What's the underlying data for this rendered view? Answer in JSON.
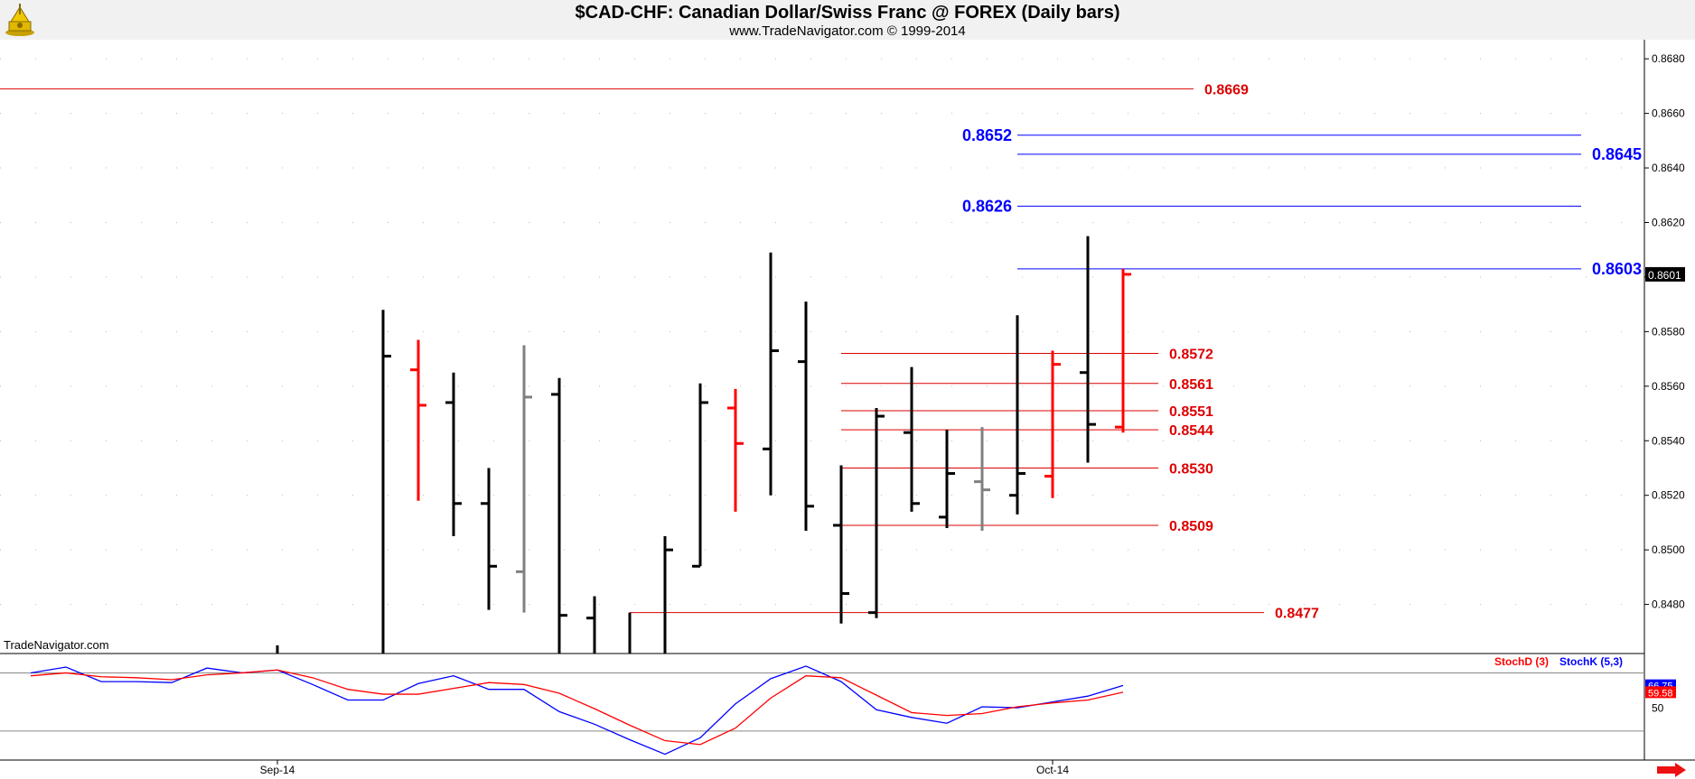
{
  "header": {
    "title": "$CAD-CHF:  Canadian Dollar/Swiss Franc @ FOREX  (Daily bars)",
    "subtitle": "www.TradeNavigator.com © 1999-2014"
  },
  "watermark": "TradeNavigator.com",
  "colors": {
    "up_bar": "#000000",
    "down_bar": "#ff0000",
    "neutral_bar": "#808080",
    "resistance": "#0000ff",
    "support": "#dd0000",
    "stoch_d": "#ff0000",
    "stoch_k": "#0000ff",
    "last_price_bg": "#000000"
  },
  "chart_data": [
    {
      "type": "ohlc",
      "title": "$CAD-CHF:  Canadian Dollar/Swiss Franc @ FOREX  (Daily bars)",
      "ylim": [
        0.8462,
        0.8687
      ],
      "y_ticks": [
        "0.8480",
        "0.8500",
        "0.8520",
        "0.8540",
        "0.8560",
        "0.8580",
        "0.8600",
        "0.8620",
        "0.8640",
        "0.8660",
        "0.8680"
      ],
      "x_labels": [
        {
          "label": "Sep-14",
          "bar": 7
        },
        {
          "label": "Oct-14",
          "bar": 29
        }
      ],
      "last_price": "0.8601",
      "bars": [
        {
          "i": 7,
          "o": null,
          "h": 0.8465,
          "l": 0.8462,
          "c": null,
          "color": "up"
        },
        {
          "i": 10,
          "o": null,
          "h": 0.8588,
          "l": 0.8462,
          "c": 0.8571,
          "color": "up"
        },
        {
          "i": 11,
          "o": 0.8566,
          "h": 0.8577,
          "l": 0.8518,
          "c": 0.8553,
          "color": "down"
        },
        {
          "i": 12,
          "o": 0.8554,
          "h": 0.8565,
          "l": 0.8505,
          "c": 0.8517,
          "color": "up"
        },
        {
          "i": 13,
          "o": 0.8517,
          "h": 0.853,
          "l": 0.8478,
          "c": 0.8494,
          "color": "up"
        },
        {
          "i": 14,
          "o": 0.8492,
          "h": 0.8575,
          "l": 0.8477,
          "c": 0.8556,
          "color": "neutral"
        },
        {
          "i": 15,
          "o": 0.8557,
          "h": 0.8563,
          "l": 0.8462,
          "c": 0.8476,
          "color": "up"
        },
        {
          "i": 16,
          "o": 0.8475,
          "h": 0.8483,
          "l": 0.8462,
          "c": null,
          "color": "up"
        },
        {
          "i": 17,
          "o": null,
          "h": 0.8477,
          "l": 0.8462,
          "c": null,
          "color": "up"
        },
        {
          "i": 18,
          "o": null,
          "h": 0.8505,
          "l": 0.8462,
          "c": 0.85,
          "color": "up"
        },
        {
          "i": 19,
          "o": 0.8494,
          "h": 0.8561,
          "l": 0.8494,
          "c": 0.8554,
          "color": "up"
        },
        {
          "i": 20,
          "o": 0.8552,
          "h": 0.8559,
          "l": 0.8514,
          "c": 0.8539,
          "color": "down"
        },
        {
          "i": 21,
          "o": 0.8537,
          "h": 0.8609,
          "l": 0.852,
          "c": 0.8573,
          "color": "up"
        },
        {
          "i": 22,
          "o": 0.8569,
          "h": 0.8591,
          "l": 0.8507,
          "c": 0.8516,
          "color": "up"
        },
        {
          "i": 23,
          "o": 0.8509,
          "h": 0.8531,
          "l": 0.8473,
          "c": 0.8484,
          "color": "up"
        },
        {
          "i": 24,
          "o": 0.8477,
          "h": 0.8552,
          "l": 0.8475,
          "c": 0.8549,
          "color": "up"
        },
        {
          "i": 25,
          "o": 0.8543,
          "h": 0.8567,
          "l": 0.8514,
          "c": 0.8517,
          "color": "up"
        },
        {
          "i": 26,
          "o": 0.8512,
          "h": 0.8544,
          "l": 0.8508,
          "c": 0.8528,
          "color": "up"
        },
        {
          "i": 27,
          "o": 0.8525,
          "h": 0.8545,
          "l": 0.8507,
          "c": 0.8522,
          "color": "neutral"
        },
        {
          "i": 28,
          "o": 0.852,
          "h": 0.8586,
          "l": 0.8513,
          "c": 0.8528,
          "color": "up"
        },
        {
          "i": 29,
          "o": 0.8527,
          "h": 0.8573,
          "l": 0.8519,
          "c": 0.8568,
          "color": "down"
        },
        {
          "i": 30,
          "o": 0.8565,
          "h": 0.8615,
          "l": 0.8532,
          "c": 0.8546,
          "color": "up"
        },
        {
          "i": 31,
          "o": 0.8545,
          "h": 0.8603,
          "l": 0.8543,
          "c": 0.8601,
          "color": "down"
        }
      ],
      "levels": [
        {
          "value": 0.8669,
          "label": "0.8669",
          "kind": "support",
          "from": 0,
          "to": 33,
          "label_side": "right",
          "label_bar": 33
        },
        {
          "value": 0.8652,
          "label": "0.8652",
          "kind": "resistance",
          "from": 28,
          "to": 44,
          "label_side": "left",
          "label_bar": 28
        },
        {
          "value": 0.8645,
          "label": "0.8645",
          "kind": "resistance",
          "from": 28,
          "to": 44,
          "label_side": "right",
          "label_bar": 44
        },
        {
          "value": 0.8626,
          "label": "0.8626",
          "kind": "resistance",
          "from": 28,
          "to": 44,
          "label_side": "left",
          "label_bar": 28
        },
        {
          "value": 0.8603,
          "label": "0.8603",
          "kind": "resistance",
          "from": 28,
          "to": 44,
          "label_side": "right",
          "label_bar": 44
        },
        {
          "value": 0.8572,
          "label": "0.8572",
          "kind": "support",
          "from": 23,
          "to": 32,
          "label_side": "right",
          "label_bar": 32
        },
        {
          "value": 0.8561,
          "label": "0.8561",
          "kind": "support",
          "from": 23,
          "to": 32,
          "label_side": "right",
          "label_bar": 32
        },
        {
          "value": 0.8551,
          "label": "0.8551",
          "kind": "support",
          "from": 23,
          "to": 32,
          "label_side": "right",
          "label_bar": 32
        },
        {
          "value": 0.8544,
          "label": "0.8544",
          "kind": "support",
          "from": 23,
          "to": 32,
          "label_side": "right",
          "label_bar": 32
        },
        {
          "value": 0.853,
          "label": "0.8530",
          "kind": "support",
          "from": 23,
          "to": 32,
          "label_side": "right",
          "label_bar": 32
        },
        {
          "value": 0.8509,
          "label": "0.8509",
          "kind": "support",
          "from": 23,
          "to": 32,
          "label_side": "right",
          "label_bar": 32
        },
        {
          "value": 0.8477,
          "label": "0.8477",
          "kind": "support",
          "from": 17,
          "to": 35,
          "label_side": "right",
          "label_bar": 35
        }
      ]
    },
    {
      "type": "line",
      "legend": [
        "StochD (3)",
        "StochK (5,3)"
      ],
      "ylim": [
        -10,
        100
      ],
      "y_ticks": [
        "50"
      ],
      "levels": [
        20,
        80
      ],
      "last_values": {
        "k": "66.75",
        "d": "59.58"
      },
      "x": [
        0,
        1,
        2,
        3,
        4,
        5,
        6,
        7,
        8,
        9,
        10,
        11,
        12,
        13,
        14,
        15,
        16,
        17,
        18,
        19,
        20,
        21,
        22,
        23,
        24,
        25,
        26,
        27,
        28,
        29,
        30,
        31
      ],
      "series": [
        {
          "name": "StochK (5,3)",
          "key": "k",
          "values": [
            80,
            86,
            71,
            71,
            70,
            85,
            80,
            83,
            68,
            52,
            52,
            69,
            77,
            63,
            63,
            40,
            27,
            11,
            -4,
            13,
            48,
            74,
            87,
            71,
            42,
            34,
            28,
            45,
            44,
            50,
            56,
            67
          ]
        },
        {
          "name": "StochD (3)",
          "key": "d",
          "values": [
            77,
            80,
            76,
            75,
            73,
            78,
            80,
            83,
            75,
            63,
            58,
            58,
            64,
            70,
            68,
            59,
            43,
            26,
            10,
            6,
            23,
            54,
            77,
            75,
            57,
            39,
            36,
            38,
            45,
            49,
            52,
            60
          ]
        }
      ]
    }
  ]
}
